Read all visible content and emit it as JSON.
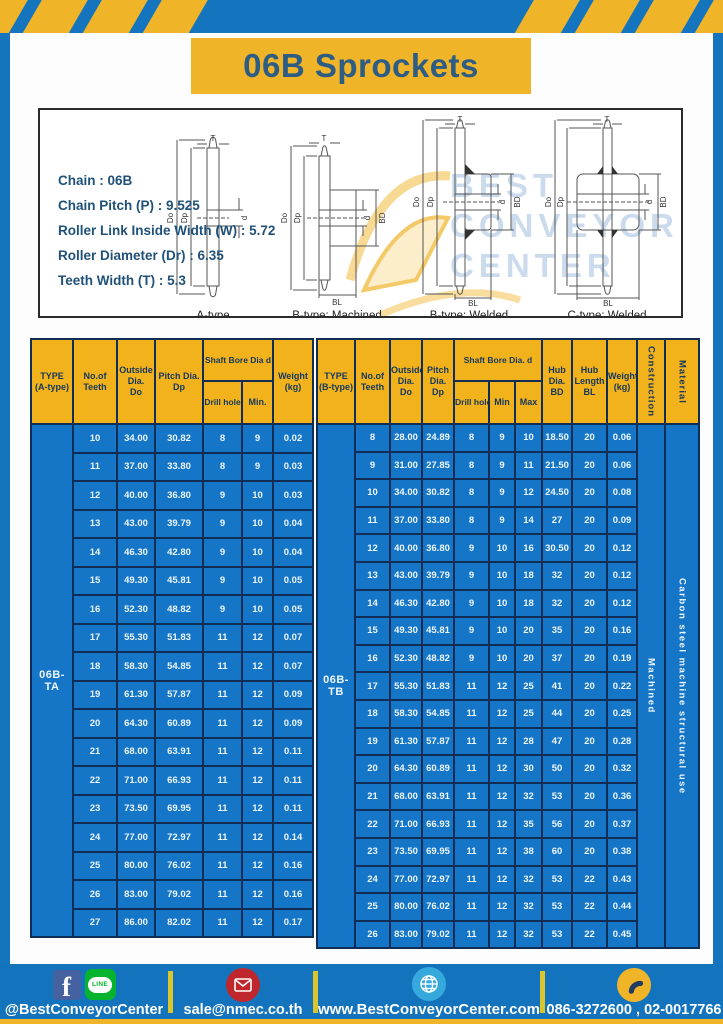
{
  "page": {
    "title": "06B Sprockets"
  },
  "spec_box": {
    "lines": [
      "Chain : 06B",
      "Chain Pitch (P) : 9.525",
      "Roller Link Inside Width (W) : 5.72",
      "Roller Diameter (Dr) : 6.35",
      "Teeth Width (T) : 5.3"
    ],
    "watermark": "BEST\nCONVEYOR\nCENTER",
    "diagrams": [
      {
        "label": "A-type",
        "dims": {
          "T": "T",
          "Do": "Do",
          "Dp": "Dp",
          "d": "d"
        }
      },
      {
        "label": "B-type: Machined",
        "dims": {
          "T": "T",
          "Do": "Do",
          "Dp": "Dp",
          "d": "d",
          "BD": "BD",
          "BL": "BL"
        }
      },
      {
        "label": "B-type: Welded",
        "dims": {
          "T": "T",
          "Do": "Do",
          "Dp": "Dp",
          "d": "d",
          "BD": "BD",
          "BL": "BL"
        }
      },
      {
        "label": "C-type: Welded",
        "dims": {
          "T": "T",
          "Do": "Do",
          "Dp": "Dp",
          "d": "d",
          "BD": "BD",
          "BL": "BL"
        }
      }
    ]
  },
  "left_table": {
    "type_label": "06B-TA",
    "headers": {
      "type": "TYPE\n(A-type)",
      "teeth": "No.of\nTeeth",
      "outside": "Outside\nDia.\nDo",
      "pitch": "Pitch Dia.\nDp",
      "shaft_bore": "Shaft Bore Dia d",
      "drill": "Drill hole",
      "min": "Min.",
      "weight": "Weight\n(kg)"
    },
    "rows": [
      [
        "10",
        "34.00",
        "30.82",
        "8",
        "9",
        "0.02"
      ],
      [
        "11",
        "37.00",
        "33.80",
        "8",
        "9",
        "0.03"
      ],
      [
        "12",
        "40.00",
        "36.80",
        "9",
        "10",
        "0.03"
      ],
      [
        "13",
        "43.00",
        "39.79",
        "9",
        "10",
        "0.04"
      ],
      [
        "14",
        "46.30",
        "42.80",
        "9",
        "10",
        "0.04"
      ],
      [
        "15",
        "49.30",
        "45.81",
        "9",
        "10",
        "0.05"
      ],
      [
        "16",
        "52.30",
        "48.82",
        "9",
        "10",
        "0.05"
      ],
      [
        "17",
        "55.30",
        "51.83",
        "11",
        "12",
        "0.07"
      ],
      [
        "18",
        "58.30",
        "54.85",
        "11",
        "12",
        "0.07"
      ],
      [
        "19",
        "61.30",
        "57.87",
        "11",
        "12",
        "0.09"
      ],
      [
        "20",
        "64.30",
        "60.89",
        "11",
        "12",
        "0.09"
      ],
      [
        "21",
        "68.00",
        "63.91",
        "11",
        "12",
        "0.11"
      ],
      [
        "22",
        "71.00",
        "66.93",
        "11",
        "12",
        "0.11"
      ],
      [
        "23",
        "73.50",
        "69.95",
        "11",
        "12",
        "0.11"
      ],
      [
        "24",
        "77.00",
        "72.97",
        "11",
        "12",
        "0.14"
      ],
      [
        "25",
        "80.00",
        "76.02",
        "11",
        "12",
        "0.16"
      ],
      [
        "26",
        "83.00",
        "79.02",
        "11",
        "12",
        "0.16"
      ],
      [
        "27",
        "86.00",
        "82.02",
        "11",
        "12",
        "0.17"
      ]
    ]
  },
  "right_table": {
    "type_label": "06B-TB",
    "construction": "Machined",
    "material": "Carbon steel machine structural use",
    "headers": {
      "type": "TYPE\n(B-type)",
      "teeth": "No.of\nTeeth",
      "outside": "Outside\nDia.\nDo",
      "pitch": "Pitch\nDia.\nDp",
      "shaft_bore": "Shaft Bore Dia. d",
      "drill": "Drill hole",
      "min": "Min",
      "max": "Max",
      "hub_dia": "Hub\nDia.\nBD",
      "hub_len": "Hub\nLength\nBL",
      "weight": "Weight\n(kg)",
      "construction": "Construction",
      "material": "Material"
    },
    "rows": [
      [
        "8",
        "28.00",
        "24.89",
        "8",
        "9",
        "10",
        "18.50",
        "20",
        "0.06"
      ],
      [
        "9",
        "31.00",
        "27.85",
        "8",
        "9",
        "11",
        "21.50",
        "20",
        "0.06"
      ],
      [
        "10",
        "34.00",
        "30.82",
        "8",
        "9",
        "12",
        "24.50",
        "20",
        "0.08"
      ],
      [
        "11",
        "37.00",
        "33.80",
        "8",
        "9",
        "14",
        "27",
        "20",
        "0.09"
      ],
      [
        "12",
        "40.00",
        "36.80",
        "9",
        "10",
        "16",
        "30.50",
        "20",
        "0.12"
      ],
      [
        "13",
        "43.00",
        "39.79",
        "9",
        "10",
        "18",
        "32",
        "20",
        "0.12"
      ],
      [
        "14",
        "46.30",
        "42.80",
        "9",
        "10",
        "18",
        "32",
        "20",
        "0.12"
      ],
      [
        "15",
        "49.30",
        "45.81",
        "9",
        "10",
        "20",
        "35",
        "20",
        "0.16"
      ],
      [
        "16",
        "52.30",
        "48.82",
        "9",
        "10",
        "20",
        "37",
        "20",
        "0.19"
      ],
      [
        "17",
        "55.30",
        "51.83",
        "11",
        "12",
        "25",
        "41",
        "20",
        "0.22"
      ],
      [
        "18",
        "58.30",
        "54.85",
        "11",
        "12",
        "25",
        "44",
        "20",
        "0.25"
      ],
      [
        "19",
        "61.30",
        "57.87",
        "11",
        "12",
        "28",
        "47",
        "20",
        "0.28"
      ],
      [
        "20",
        "64.30",
        "60.89",
        "11",
        "12",
        "30",
        "50",
        "20",
        "0.32"
      ],
      [
        "21",
        "68.00",
        "63.91",
        "11",
        "12",
        "32",
        "53",
        "20",
        "0.36"
      ],
      [
        "22",
        "71.00",
        "66.93",
        "11",
        "12",
        "35",
        "56",
        "20",
        "0.37"
      ],
      [
        "23",
        "73.50",
        "69.95",
        "11",
        "12",
        "38",
        "60",
        "20",
        "0.38"
      ],
      [
        "24",
        "77.00",
        "72.97",
        "11",
        "12",
        "32",
        "53",
        "22",
        "0.43"
      ],
      [
        "25",
        "80.00",
        "76.02",
        "11",
        "12",
        "32",
        "53",
        "22",
        "0.44"
      ],
      [
        "26",
        "83.00",
        "79.02",
        "11",
        "12",
        "32",
        "53",
        "22",
        "0.45"
      ]
    ]
  },
  "footer": {
    "facebook_label": "f",
    "line_label": "LINE",
    "social_handle": "@BestConveyorCenter",
    "email": "sale@nmec.co.th",
    "website": "www.BestConveyorCenter.com",
    "phone": "086-3272600 , 02-0017766"
  },
  "colors": {
    "frame_blue": "#1474be",
    "accent_yellow": "#f0b429",
    "table_header_yellow": "#f2b21c",
    "table_cell_blue": "#1576c8",
    "table_border_navy": "#0f2d55",
    "title_text": "#2d5c84"
  }
}
